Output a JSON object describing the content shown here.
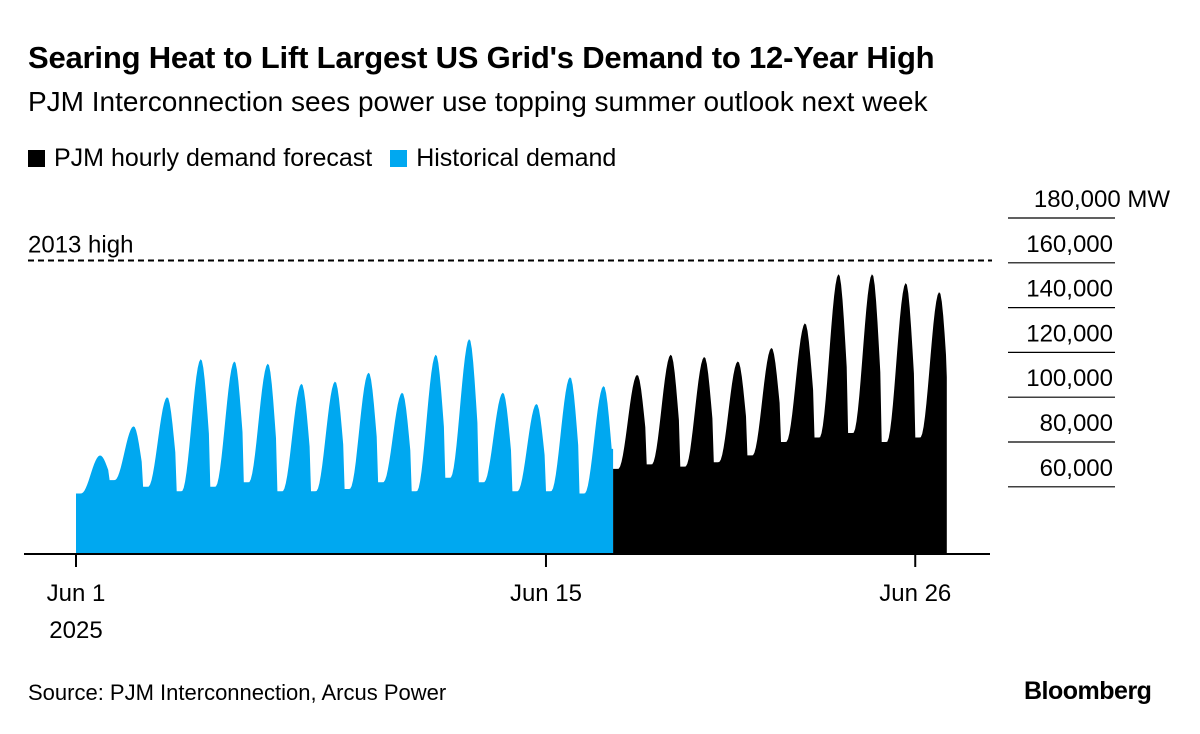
{
  "header": {
    "title": "Searing Heat to Lift Largest US Grid's Demand to 12-Year High",
    "subtitle": "PJM Interconnection sees power use topping summer outlook next week"
  },
  "footer": {
    "source": "Source: PJM Interconnection, Arcus Power",
    "brand": "Bloomberg"
  },
  "colors": {
    "forecast": "#000000",
    "historical": "#00a8f0",
    "axis": "#000000",
    "background": "#ffffff"
  },
  "chart_data": {
    "type": "area",
    "legend_position": "top-left",
    "grid": true,
    "y_axis_side": "right",
    "y_unit": "MW",
    "yticks": [
      60000,
      80000,
      100000,
      120000,
      140000,
      160000,
      180000
    ],
    "ytick_labels": [
      "60,000",
      "80,000",
      "100,000",
      "120,000",
      "140,000",
      "160,000",
      "180,000 MW"
    ],
    "ylim": [
      30000,
      180000
    ],
    "xlim": [
      "2025-06-01",
      "2025-06-30"
    ],
    "xticks": [
      {
        "date": "2025-06-01",
        "label": "Jun 1",
        "sublabel": "2025"
      },
      {
        "date": "2025-06-15",
        "label": "Jun 15",
        "sublabel": ""
      },
      {
        "date": "2025-06-26",
        "label": "Jun 26",
        "sublabel": ""
      }
    ],
    "reference_line": {
      "label": "2013 high",
      "value": 161000
    },
    "series": [
      {
        "name": "Historical demand",
        "color": "#00a8f0",
        "start": "2025-06-01",
        "end": "2025-06-17",
        "daily_peaks": [
          74000,
          87000,
          100000,
          117000,
          116000,
          115000,
          106000,
          107000,
          111000,
          102000,
          119000,
          126000,
          102000,
          97000,
          109000,
          105000
        ],
        "daily_troughs": [
          57000,
          63000,
          60000,
          58000,
          60000,
          62000,
          58000,
          58000,
          59000,
          62000,
          58000,
          64000,
          62000,
          58000,
          58000,
          57000
        ]
      },
      {
        "name": "PJM hourly demand forecast",
        "color": "#000000",
        "start": "2025-06-17",
        "end": "2025-06-27",
        "daily_peaks": [
          110000,
          119000,
          118000,
          116000,
          122000,
          133000,
          155000,
          155000,
          151000,
          147000
        ],
        "daily_troughs": [
          68000,
          70000,
          69000,
          71000,
          74000,
          80000,
          82000,
          84000,
          80000,
          82000
        ]
      }
    ]
  }
}
